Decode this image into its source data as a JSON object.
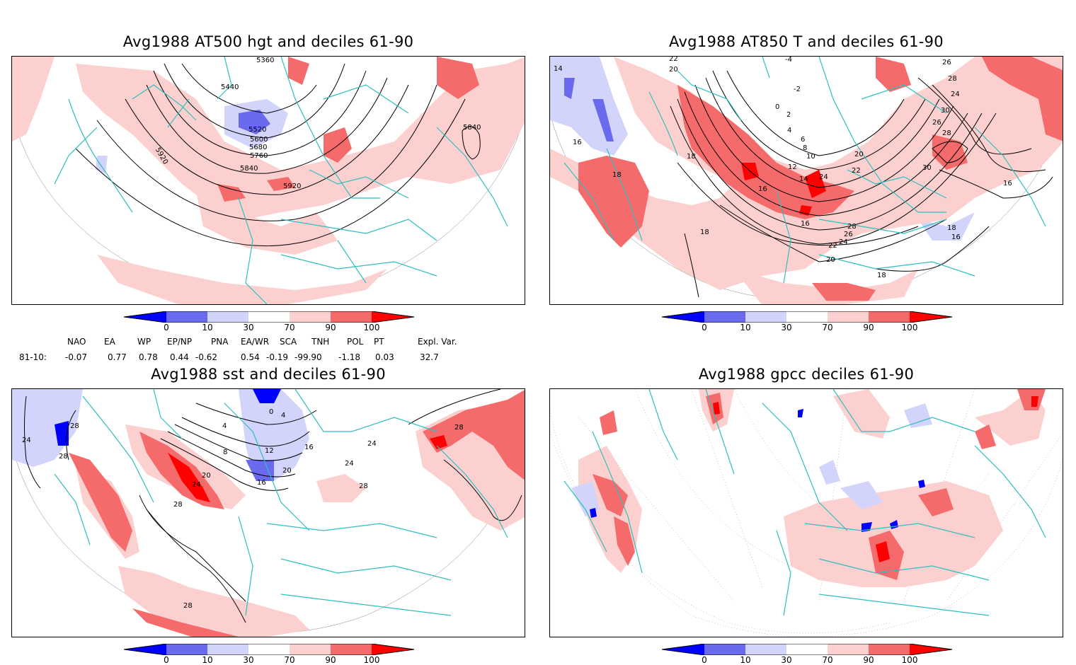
{
  "panels": [
    {
      "title": "Avg1988 AT500 hgt and deciles 61-90",
      "contour_labels": [
        "5360",
        "5440",
        "5520",
        "5600",
        "5680",
        "5760",
        "5840",
        "5920",
        "5840",
        "5920"
      ]
    },
    {
      "title": "Avg1988 AT850 T and deciles 61-90",
      "contour_labels": [
        "14",
        "16",
        "18",
        "20",
        "22",
        "-4",
        "-2",
        "0",
        "2",
        "4",
        "6",
        "8",
        "10",
        "12",
        "14",
        "16",
        "18",
        "20",
        "22",
        "24",
        "26",
        "28",
        "30",
        "24",
        "26",
        "28",
        "30",
        "16",
        "18",
        "16",
        "18",
        "20",
        "22",
        "24",
        "26",
        "28",
        "16",
        "18"
      ]
    },
    {
      "title": "Avg1988 sst and deciles 61-90",
      "contour_labels": [
        "24",
        "28",
        "28",
        "4",
        "8",
        "12",
        "16",
        "20",
        "24",
        "28",
        "28",
        "24",
        "28",
        "28",
        "0",
        "4",
        "16",
        "20",
        "24"
      ]
    },
    {
      "title": "Avg1988 gpcc deciles 61-90",
      "contour_labels": []
    }
  ],
  "colorbar": {
    "ticks": [
      "0",
      "10",
      "30",
      "70",
      "90",
      "100"
    ],
    "colors": {
      "deep_blue": "#0000ff",
      "mid_blue": "#6a6aef",
      "light_blue": "#d2d4fb",
      "white": "#ffffff",
      "light_red": "#fcd0cf",
      "mid_red": "#f56a6a",
      "deep_red": "#ff0000"
    }
  },
  "indices": {
    "headers": [
      "NAO",
      "EA",
      "WP",
      "EP/NP",
      "PNA",
      "EA/WR",
      "SCA",
      "TNH",
      "POL",
      "PT",
      "Expl. Var."
    ],
    "row_label": "81-10:",
    "values": [
      "-0.07",
      "0.77",
      "0.78",
      "0.44",
      "-0.62",
      "0.54",
      "-0.19",
      "-99.90",
      "-1.18",
      "0.03",
      "32.7"
    ]
  },
  "map_colors": {
    "coast": "#2ebfbf",
    "grid": "#888888",
    "contour": "#000000"
  }
}
